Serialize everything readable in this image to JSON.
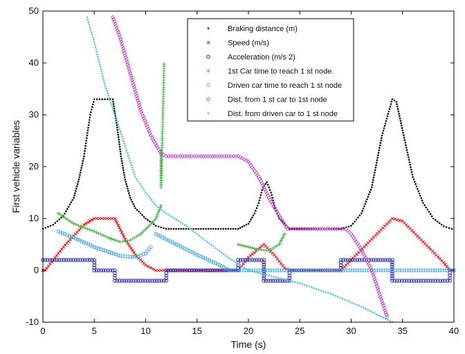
{
  "chart_data": {
    "type": "scatter",
    "title": "",
    "xlabel": "Time (s)",
    "ylabel": "First vehicle variables",
    "xlim": [
      0,
      40
    ],
    "ylim": [
      -10,
      50
    ],
    "xticks": [
      0,
      5,
      10,
      15,
      20,
      25,
      30,
      35,
      40
    ],
    "yticks": [
      -10,
      0,
      10,
      20,
      30,
      40,
      50
    ],
    "grid": false,
    "legend_position": "top-right",
    "series": [
      {
        "name": "Braking distance (m)",
        "marker": "dot",
        "color": "#000000",
        "points": [
          [
            0,
            8
          ],
          [
            1,
            8.8
          ],
          [
            2,
            10.5
          ],
          [
            3,
            14
          ],
          [
            3.5,
            17.5
          ],
          [
            4,
            22
          ],
          [
            4.3,
            26
          ],
          [
            4.6,
            30
          ],
          [
            5,
            33
          ],
          [
            6.8,
            33
          ],
          [
            7.2,
            28
          ],
          [
            7.6,
            22
          ],
          [
            8,
            17.5
          ],
          [
            8.5,
            14
          ],
          [
            9,
            12
          ],
          [
            10,
            10
          ],
          [
            11,
            8.6
          ],
          [
            12,
            8
          ],
          [
            19,
            8
          ],
          [
            20,
            9
          ],
          [
            20.6,
            11
          ],
          [
            21,
            13
          ],
          [
            21.4,
            16
          ],
          [
            21.8,
            17
          ],
          [
            22.2,
            15
          ],
          [
            22.6,
            12
          ],
          [
            23,
            10
          ],
          [
            24,
            8
          ],
          [
            29,
            8
          ],
          [
            30,
            8.6
          ],
          [
            31,
            11
          ],
          [
            32,
            16
          ],
          [
            33,
            26
          ],
          [
            34,
            33
          ],
          [
            34.4,
            32.5
          ],
          [
            35,
            27
          ],
          [
            36,
            18
          ],
          [
            37,
            13
          ],
          [
            38,
            10
          ],
          [
            39,
            8.5
          ],
          [
            39.8,
            8
          ]
        ]
      },
      {
        "name": "Speed (m/s)",
        "marker": "x",
        "color": "#e02020",
        "points": [
          [
            0,
            0
          ],
          [
            0.2,
            0
          ],
          [
            2,
            4.5
          ],
          [
            4,
            8.8
          ],
          [
            5,
            10
          ],
          [
            7,
            10
          ],
          [
            8,
            6
          ],
          [
            9,
            3
          ],
          [
            10,
            1
          ],
          [
            11,
            0
          ],
          [
            19,
            0
          ],
          [
            20,
            2.5
          ],
          [
            21.5,
            5
          ],
          [
            22.5,
            3
          ],
          [
            23.5,
            0.5
          ],
          [
            24,
            0
          ],
          [
            29,
            0
          ],
          [
            30,
            2
          ],
          [
            32,
            6
          ],
          [
            34,
            10
          ],
          [
            35,
            9.5
          ],
          [
            37,
            5.5
          ],
          [
            39,
            1.5
          ],
          [
            39.6,
            0
          ]
        ]
      },
      {
        "name": "Acceleration (m/s 2)",
        "marker": "circle",
        "color": "#3030b0",
        "points": [
          [
            0,
            2
          ],
          [
            5,
            2
          ],
          [
            5,
            0
          ],
          [
            7,
            0
          ],
          [
            7,
            -2
          ],
          [
            12,
            -2
          ],
          [
            12,
            0
          ],
          [
            19,
            0
          ],
          [
            19,
            2
          ],
          [
            21.5,
            2
          ],
          [
            21.5,
            -2
          ],
          [
            24,
            -2
          ],
          [
            24,
            0
          ],
          [
            29,
            0
          ],
          [
            29,
            2
          ],
          [
            34,
            2
          ],
          [
            34,
            -2
          ],
          [
            39.6,
            -2
          ],
          [
            39.6,
            0
          ],
          [
            40,
            0
          ]
        ]
      },
      {
        "name": "1st Car time to reach 1 st node.",
        "marker": "plus",
        "color": "#40b040",
        "segments": [
          [
            [
              1.5,
              11
            ],
            [
              3,
              9
            ],
            [
              5,
              7.5
            ],
            [
              6.5,
              6.2
            ],
            [
              7.5,
              5.5
            ],
            [
              8.5,
              5.8
            ],
            [
              9.5,
              7
            ],
            [
              10.3,
              8.5
            ],
            [
              11,
              10
            ],
            [
              11.5,
              12.5
            ]
          ],
          [
            [
              11.5,
              23
            ],
            [
              11.5,
              16
            ],
            [
              11.8,
              39.8
            ]
          ],
          [
            [
              19,
              5
            ],
            [
              20,
              4.5
            ],
            [
              21,
              4
            ],
            [
              22,
              3.8
            ],
            [
              23,
              5
            ],
            [
              23.5,
              7
            ]
          ]
        ]
      },
      {
        "name": "Driven car time to reach 1 st node",
        "marker": "square",
        "color": "#4aa8d8",
        "segments": [
          [
            [
              1.5,
              7.5
            ],
            [
              3,
              6.3
            ],
            [
              5,
              4.5
            ],
            [
              6.5,
              3.5
            ],
            [
              7.5,
              2.8
            ],
            [
              8.5,
              2.6
            ],
            [
              9.3,
              2.7
            ],
            [
              10,
              3.3
            ],
            [
              10.5,
              4.5
            ]
          ],
          [
            [
              11,
              7
            ],
            [
              13,
              5
            ],
            [
              15,
              3
            ],
            [
              17,
              1.2
            ],
            [
              18.2,
              0
            ]
          ],
          [
            [
              18.2,
              0
            ],
            [
              40,
              0
            ]
          ]
        ]
      },
      {
        "name": "Dist. from 1 st car to 1st node",
        "marker": "diamond",
        "color": "#c040c0",
        "points": [
          [
            6.8,
            48.8
          ],
          [
            7.5,
            45
          ],
          [
            8.5,
            38
          ],
          [
            9.5,
            31
          ],
          [
            10.5,
            26
          ],
          [
            11.5,
            22.5
          ],
          [
            12,
            22
          ],
          [
            19,
            22
          ],
          [
            20,
            21
          ],
          [
            21,
            18
          ],
          [
            22,
            14
          ],
          [
            23,
            10.5
          ],
          [
            23.8,
            8
          ],
          [
            29.5,
            8
          ],
          [
            30,
            7
          ],
          [
            31,
            4
          ],
          [
            32,
            0
          ],
          [
            32.5,
            -3
          ],
          [
            33,
            -6
          ],
          [
            33.5,
            -9
          ]
        ]
      },
      {
        "name": "Dist. from driven car to 1 st node",
        "marker": "dot",
        "color": "#50c0e0",
        "points": [
          [
            4.3,
            48.8
          ],
          [
            5,
            44
          ],
          [
            6,
            36
          ],
          [
            7,
            30
          ],
          [
            8,
            24
          ],
          [
            9,
            18
          ],
          [
            10,
            15
          ],
          [
            11,
            12.5
          ],
          [
            12,
            11
          ],
          [
            14,
            8.5
          ],
          [
            16,
            5.5
          ],
          [
            18,
            2.5
          ],
          [
            20,
            0
          ],
          [
            22,
            -1
          ],
          [
            25,
            -2.5
          ],
          [
            28,
            -4.5
          ],
          [
            31,
            -7
          ],
          [
            34,
            -10
          ]
        ]
      }
    ]
  }
}
